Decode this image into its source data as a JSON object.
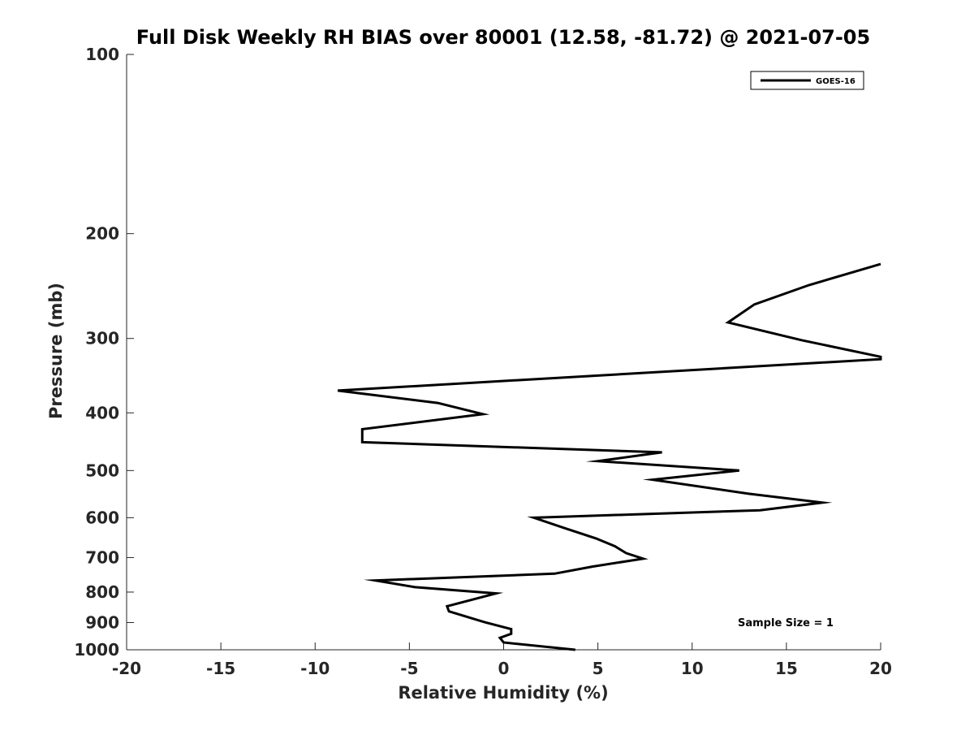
{
  "chart_data": {
    "type": "line",
    "title": "Full Disk Weekly RH BIAS over 80001 (12.58, -81.72) @ 2021-07-05",
    "xlabel": "Relative Humidity (%)",
    "ylabel": "Pressure (mb)",
    "xlim": [
      -20,
      20
    ],
    "ylim": [
      100,
      1000
    ],
    "yscale": "log",
    "y_reversed": true,
    "grid": false,
    "legend_position": "top-right",
    "xticks": [
      "-20",
      "-15",
      "-10",
      "-5",
      "0",
      "5",
      "10",
      "15",
      "20"
    ],
    "yticks": [
      "100",
      "200",
      "300",
      "400",
      "500",
      "600",
      "700",
      "800",
      "900",
      "1000"
    ],
    "series": [
      {
        "name": "GOES-16",
        "color": "#000000",
        "points": [
          {
            "x": 20.0,
            "y": 225
          },
          {
            "x": 16.2,
            "y": 244
          },
          {
            "x": 13.3,
            "y": 263
          },
          {
            "x": 11.9,
            "y": 282
          },
          {
            "x": 15.8,
            "y": 302
          },
          {
            "x": 20.0,
            "y": 322
          },
          {
            "x": 20.0,
            "y": 325
          },
          {
            "x": -8.8,
            "y": 367
          },
          {
            "x": -3.5,
            "y": 385
          },
          {
            "x": -1.1,
            "y": 402
          },
          {
            "x": -7.5,
            "y": 426
          },
          {
            "x": -7.5,
            "y": 448
          },
          {
            "x": 8.4,
            "y": 466
          },
          {
            "x": 5.0,
            "y": 482
          },
          {
            "x": 12.5,
            "y": 500
          },
          {
            "x": 7.9,
            "y": 518
          },
          {
            "x": 13.0,
            "y": 547
          },
          {
            "x": 16.9,
            "y": 566
          },
          {
            "x": 13.6,
            "y": 583
          },
          {
            "x": 1.6,
            "y": 600
          },
          {
            "x": 3.2,
            "y": 624
          },
          {
            "x": 4.9,
            "y": 650
          },
          {
            "x": 5.9,
            "y": 670
          },
          {
            "x": 6.5,
            "y": 688
          },
          {
            "x": 7.4,
            "y": 703
          },
          {
            "x": 4.7,
            "y": 725
          },
          {
            "x": 2.7,
            "y": 745
          },
          {
            "x": -6.8,
            "y": 765
          },
          {
            "x": -4.7,
            "y": 785
          },
          {
            "x": -0.4,
            "y": 804
          },
          {
            "x": -3.0,
            "y": 845
          },
          {
            "x": -2.9,
            "y": 862
          },
          {
            "x": -1.0,
            "y": 899
          },
          {
            "x": 0.4,
            "y": 923
          },
          {
            "x": 0.4,
            "y": 940
          },
          {
            "x": -0.2,
            "y": 955
          },
          {
            "x": 0.0,
            "y": 972
          },
          {
            "x": 3.8,
            "y": 1000
          }
        ]
      }
    ],
    "annotations": [
      "Sample Size = 1"
    ]
  }
}
